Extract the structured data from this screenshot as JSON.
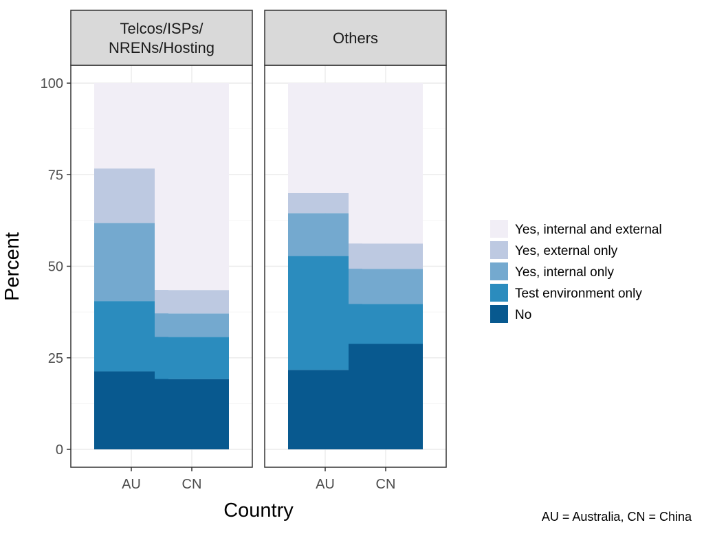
{
  "chart_data": {
    "type": "bar",
    "stacked": true,
    "ylabel": "Percent",
    "xlabel": "Country",
    "ylim": [
      0,
      100
    ],
    "yticks": [
      0,
      25,
      50,
      75,
      100
    ],
    "grid": true,
    "legend_position": "right",
    "footnote": "AU = Australia, CN = China",
    "categories": [
      "AU",
      "CN"
    ],
    "series_names": [
      "No",
      "Test environment only",
      "Yes, internal only",
      "Yes, external only",
      "Yes, internal and external"
    ],
    "legend_order": [
      "Yes, internal and external",
      "Yes, external only",
      "Yes, internal only",
      "Test environment only",
      "No"
    ],
    "colors": {
      "No": "#08598f",
      "Test environment only": "#2b8cbe",
      "Yes, internal only": "#74a9cf",
      "Yes, external only": "#bdc9e1",
      "Yes, internal and external": "#f1eef6"
    },
    "facets": [
      {
        "label": "Telcos/ISPs/\nNRENs/Hosting",
        "label_lines": [
          "Telcos/ISPs/",
          "NRENs/Hosting"
        ],
        "values": {
          "AU": [
            21.3,
            19.2,
            21.3,
            14.9,
            23.3
          ],
          "CN": [
            19.2,
            11.5,
            6.4,
            6.4,
            56.5
          ]
        }
      },
      {
        "label": "Others",
        "label_lines": [
          "Others"
        ],
        "values": {
          "AU": [
            21.7,
            31.1,
            11.7,
            5.5,
            30.0
          ],
          "CN": [
            28.8,
            10.9,
            9.6,
            6.9,
            43.8
          ]
        }
      }
    ]
  }
}
